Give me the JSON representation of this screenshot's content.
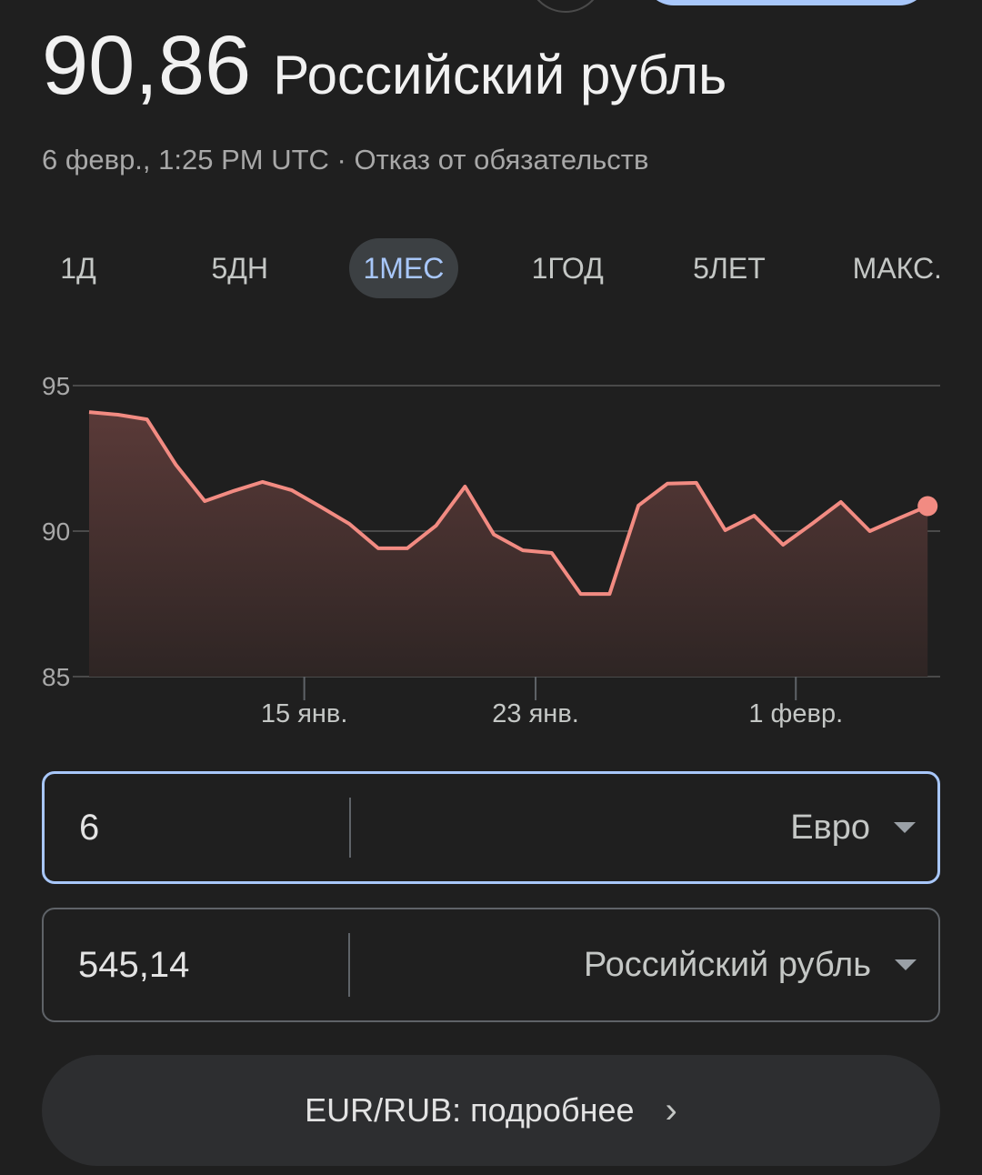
{
  "header": {
    "rate": "90,86",
    "currency": "Российский рубль",
    "timestamp": "6 февр., 1:25 PM UTC",
    "separator": " · ",
    "disclaimer": "Отказ от обязательств"
  },
  "tabs": [
    {
      "label": "1Д",
      "selected": false
    },
    {
      "label": "5ДН",
      "selected": false
    },
    {
      "label": "1МЕС",
      "selected": true
    },
    {
      "label": "1ГОД",
      "selected": false
    },
    {
      "label": "5ЛЕТ",
      "selected": false
    },
    {
      "label": "МАКС.",
      "selected": false
    }
  ],
  "chart_data": {
    "type": "area",
    "ylim": [
      85,
      95
    ],
    "yticks": [
      "95",
      "90",
      "85"
    ],
    "ytick_values": [
      95,
      90,
      85
    ],
    "grid": true,
    "xticks": [
      {
        "label": "15 янв.",
        "date": "01-15"
      },
      {
        "label": "23 янв.",
        "date": "01-23"
      },
      {
        "label": "1 февр.",
        "date": "02-01"
      }
    ],
    "x_start": "01-07",
    "values": [
      94.09,
      94.0,
      93.84,
      92.28,
      91.03,
      91.38,
      91.69,
      91.41,
      90.84,
      90.25,
      89.41,
      89.41,
      90.19,
      91.53,
      89.88,
      89.34,
      89.25,
      87.84,
      87.84,
      90.88,
      91.63,
      91.66,
      90.03,
      90.53,
      89.53,
      90.25,
      91.0,
      90.0,
      90.44,
      90.86
    ],
    "line_color": "#f28b82",
    "fill_color": "#5a3a38"
  },
  "converter": {
    "from_amount": "6",
    "from_currency": "Евро",
    "to_amount": "545,14",
    "to_currency": "Российский рубль"
  },
  "more_button": {
    "label": "EUR/RUB: подробнее"
  },
  "colors": {
    "accent": "#a8c7fa",
    "background": "#1f1f1f"
  }
}
